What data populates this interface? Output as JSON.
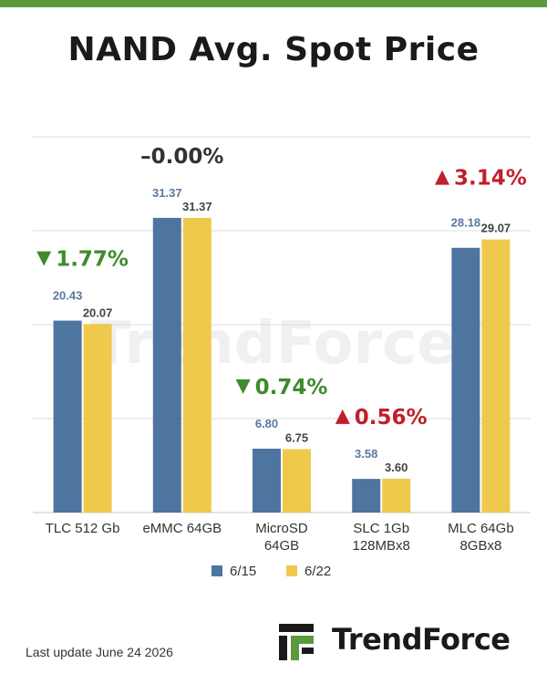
{
  "title": "NAND Avg. Spot Price",
  "footer": {
    "last_update": "Last update  June 24  2026"
  },
  "brand": {
    "name": "TrendForce",
    "watermark": "TrendForce"
  },
  "colors": {
    "series_1": "#4e74a0",
    "series_2": "#efc94c",
    "up": "#c0202a",
    "down": "#3f8a2e",
    "flat": "#333333",
    "accent_green": "#5a9a3c"
  },
  "chart_data": {
    "type": "bar",
    "title": "NAND Avg. Spot Price",
    "categories": [
      [
        "TLC 512 Gb"
      ],
      [
        "eMMC 64GB"
      ],
      [
        "MicroSD",
        "64GB"
      ],
      [
        "SLC 1Gb",
        "128MBx8"
      ],
      [
        "MLC 64Gb",
        "8GBx8"
      ]
    ],
    "series": [
      {
        "name": "6/15",
        "values": [
          20.43,
          31.37,
          6.8,
          3.58,
          28.18
        ],
        "labels": [
          "20.43",
          "31.37",
          "6.80",
          "3.58",
          "28.18"
        ]
      },
      {
        "name": "6/22",
        "values": [
          20.07,
          31.37,
          6.75,
          3.6,
          29.07
        ],
        "labels": [
          "20.07",
          "31.37",
          "6.75",
          "3.60",
          "29.07"
        ]
      }
    ],
    "changes": [
      {
        "direction": "down",
        "text": "1.77%"
      },
      {
        "direction": "flat",
        "text": "–0.00%"
      },
      {
        "direction": "down",
        "text": "0.74%"
      },
      {
        "direction": "up",
        "text": "0.56%"
      },
      {
        "direction": "up",
        "text": "3.14%"
      }
    ],
    "ylim": [
      0,
      40
    ],
    "grid": true,
    "legend": "bottom"
  }
}
